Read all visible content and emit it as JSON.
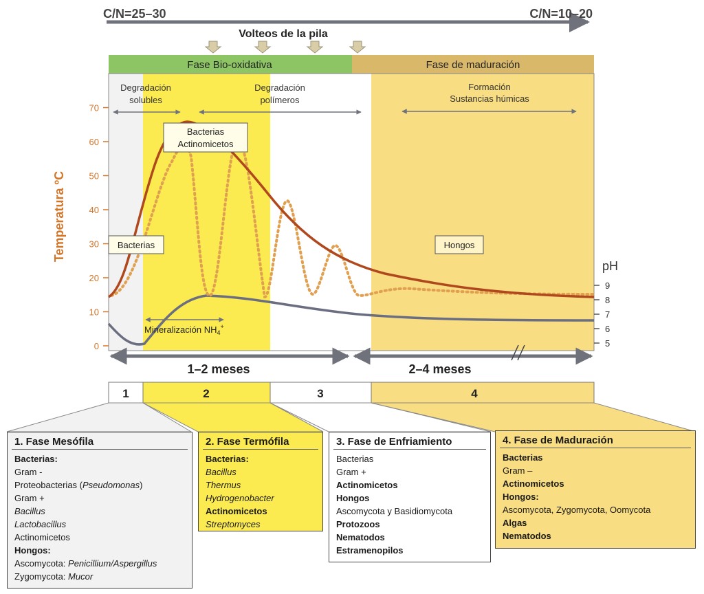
{
  "header": {
    "cn_start": "C/N=25–30",
    "cn_end": "C/N=10–20",
    "turning": "Volteos de la pila"
  },
  "phases": {
    "bio_oxidative": "Fase Bio-oxidativa",
    "maturation": "Fase de maduración"
  },
  "processes": {
    "degradation_soluble": [
      "Degradación",
      "solubles"
    ],
    "degradation_polymers": [
      "Degradación",
      "polímeros"
    ],
    "humic_formation": [
      "Formación",
      "Sustancias húmicas"
    ],
    "mineralization": "Mineralización NH",
    "mineralization_sub": "4",
    "mineralization_sup": "+"
  },
  "organism_labels": {
    "bacteria_actino": [
      "Bacterias",
      "Actinomicetos"
    ],
    "bacteria": "Bacterias",
    "fungi": "Hongos"
  },
  "axes": {
    "temp_label": "Temperatura ºC",
    "temp_ticks": [
      "0",
      "10",
      "20",
      "30",
      "40",
      "50",
      "60",
      "70"
    ],
    "ph_label": "pH",
    "ph_ticks": [
      "5",
      "6",
      "7",
      "8",
      "9"
    ]
  },
  "durations": {
    "first": "1–2 meses",
    "second": "2–4 meses"
  },
  "stage_numbers": [
    "1",
    "2",
    "3",
    "4"
  ],
  "colors": {
    "green": "#8dc565",
    "tan": "#d9b86a",
    "pale_yellow": "#f8dd82",
    "bright_yellow": "#fbeb50",
    "temperature_curve": "#b0481e",
    "dotted_curve": "#e0a050",
    "ph_curve": "#6a6e80",
    "arrow_gray": "#7d8088"
  },
  "boxes": {
    "mesophilic": {
      "title": "1. Fase Mesófila",
      "lines": [
        {
          "text": "Bacterias:",
          "style": "b"
        },
        {
          "text": "Gram -",
          "style": ""
        },
        {
          "text": "Proteobacterias (",
          "style": "",
          "italic": "Pseudomonas",
          "after": ")"
        },
        {
          "text": "Gram +",
          "style": ""
        },
        {
          "text": "Bacillus",
          "style": "i"
        },
        {
          "text": "Lactobacillus",
          "style": "i"
        },
        {
          "text": "Actinomicetos",
          "style": ""
        },
        {
          "text": "Hongos:",
          "style": "b"
        },
        {
          "text": "Ascomycota: ",
          "style": "",
          "italic": "Penicillium/Aspergillus",
          "after": ""
        },
        {
          "text": "Zygomycota: ",
          "style": "",
          "italic": "Mucor",
          "after": ""
        }
      ]
    },
    "thermophilic": {
      "title": "2. Fase Termófila",
      "lines": [
        {
          "text": "Bacterias:",
          "style": "b"
        },
        {
          "text": "Bacillus",
          "style": "i"
        },
        {
          "text": "Thermus",
          "style": "i"
        },
        {
          "text": "Hydrogenobacter",
          "style": "i"
        },
        {
          "text": "Actinomicetos",
          "style": "b"
        },
        {
          "text": "Streptomyces",
          "style": "i"
        }
      ]
    },
    "cooling": {
      "title": "3. Fase de Enfriamiento",
      "lines": [
        {
          "text": "Bacterias",
          "style": ""
        },
        {
          "text": "Gram +",
          "style": ""
        },
        {
          "text": "Actinomicetos",
          "style": "b"
        },
        {
          "text": "Hongos",
          "style": "b"
        },
        {
          "text": "Ascomycota y Basidiomycota",
          "style": ""
        },
        {
          "text": "Protozoos",
          "style": "b"
        },
        {
          "text": "Nematodos",
          "style": "b"
        },
        {
          "text": "Estramenopilos",
          "style": "b"
        }
      ]
    },
    "maturation": {
      "title": "4. Fase de Maduración",
      "lines": [
        {
          "text": "Bacterias",
          "style": "b"
        },
        {
          "text": "Gram –",
          "style": ""
        },
        {
          "text": "Actinomicetos",
          "style": "b"
        },
        {
          "text": "Hongos:",
          "style": "b"
        },
        {
          "text": "Ascomycota, Zygomycota, Oomycota",
          "style": ""
        },
        {
          "text": "Algas",
          "style": "b"
        },
        {
          "text": "Nematodos",
          "style": "b"
        }
      ]
    }
  }
}
